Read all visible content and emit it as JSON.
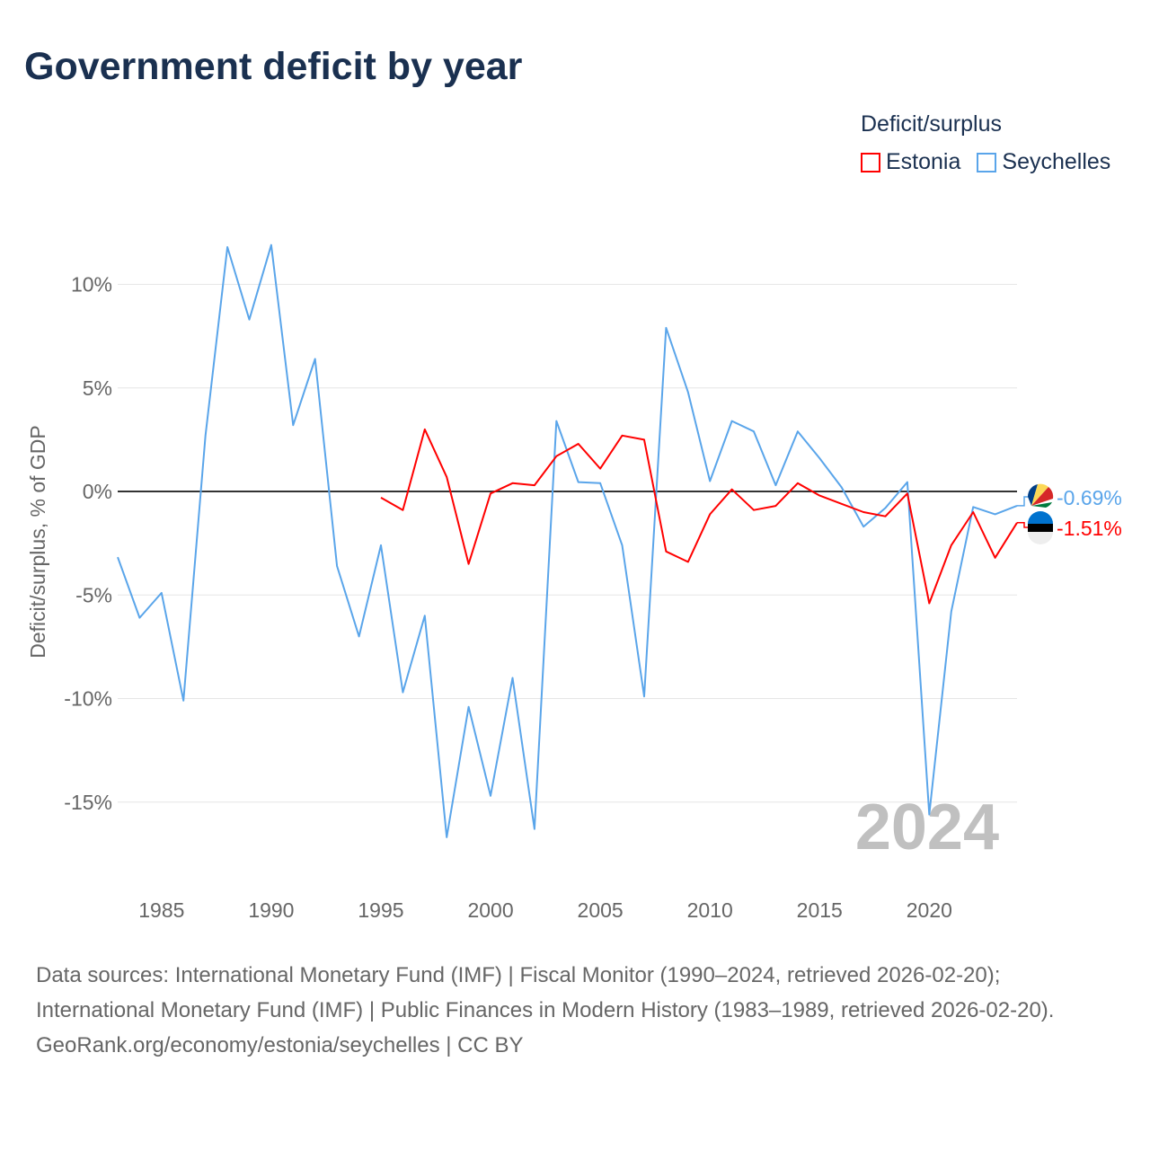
{
  "title": "Government deficit by year",
  "legend": {
    "title": "Deficit/surplus",
    "items": [
      {
        "label": "Estonia",
        "color": "#ff0000"
      },
      {
        "label": "Seychelles",
        "color": "#5aa5ea"
      }
    ]
  },
  "chart_data": {
    "type": "line",
    "title": "Government deficit by year",
    "xlabel": "",
    "ylabel": "Deficit/surplus, % of GDP",
    "xlim": [
      1983,
      2024
    ],
    "ylim": [
      -18.5,
      14
    ],
    "x_ticks": [
      1985,
      1990,
      1995,
      2000,
      2005,
      2010,
      2015,
      2020
    ],
    "y_ticks": [
      {
        "v": 10,
        "label": "10%"
      },
      {
        "v": 5,
        "label": "5%"
      },
      {
        "v": 0,
        "label": "0%"
      },
      {
        "v": -5,
        "label": "-5%"
      },
      {
        "v": -10,
        "label": "-10%"
      },
      {
        "v": -15,
        "label": "-15%"
      }
    ],
    "year_watermark": "2024",
    "series": [
      {
        "name": "Seychelles",
        "color": "#5aa5ea",
        "end_label": "-0.69%",
        "start": 1983,
        "values": [
          -3.17,
          -6.1,
          -4.9,
          -10.1,
          2.7,
          11.8,
          8.3,
          11.9,
          3.2,
          6.4,
          -3.6,
          -7.0,
          -2.6,
          -9.7,
          -6.0,
          -16.7,
          -10.4,
          -14.7,
          -9.0,
          -16.3,
          3.4,
          0.45,
          0.4,
          -2.6,
          -9.9,
          7.9,
          4.8,
          0.5,
          3.4,
          2.9,
          0.3,
          2.9,
          1.6,
          0.2,
          -1.7,
          -0.8,
          0.45,
          -15.6,
          -5.8,
          -0.75,
          -1.1,
          -0.69
        ]
      },
      {
        "name": "Estonia",
        "color": "#ff0000",
        "end_label": "-1.51%",
        "start": 1995,
        "values": [
          -0.3,
          -0.9,
          3.0,
          0.7,
          -3.5,
          -0.1,
          0.4,
          0.3,
          1.7,
          2.3,
          1.1,
          2.7,
          2.5,
          -2.9,
          -3.4,
          -1.1,
          0.1,
          -0.9,
          -0.7,
          0.4,
          -0.2,
          -0.6,
          -1.0,
          -1.2,
          -0.1,
          -5.4,
          -2.6,
          -1.0,
          -3.2,
          -1.51
        ]
      }
    ]
  },
  "sources": {
    "line1": "Data sources: International Monetary Fund (IMF) | Fiscal Monitor (1990–2024, retrieved 2026-02-20); International Monetary Fund (IMF) | Public Finances in Modern History (1983–1989, retrieved 2026-02-20).",
    "line2": "GeoRank.org/economy/estonia/seychelles | CC BY"
  }
}
